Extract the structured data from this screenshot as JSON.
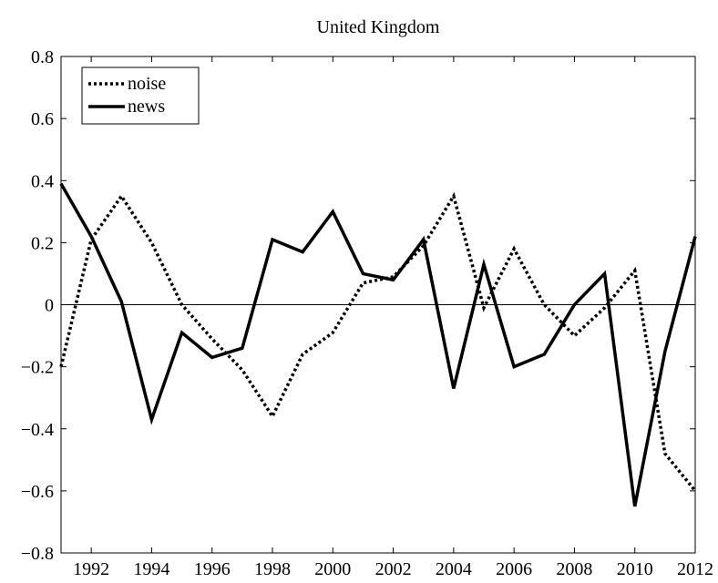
{
  "chart_data": {
    "type": "line",
    "title": "United Kingdom",
    "x": [
      1991,
      1992,
      1993,
      1994,
      1995,
      1996,
      1997,
      1998,
      1999,
      2000,
      2001,
      2002,
      2003,
      2004,
      2005,
      2006,
      2007,
      2008,
      2009,
      2010,
      2011,
      2012
    ],
    "series": [
      {
        "name": "noise",
        "color": "#000000",
        "dash": "dotted",
        "values": [
          -0.2,
          0.21,
          0.35,
          0.2,
          0.0,
          -0.11,
          -0.21,
          -0.36,
          -0.16,
          -0.09,
          0.07,
          0.09,
          0.19,
          0.35,
          -0.01,
          0.18,
          0.0,
          -0.1,
          -0.01,
          0.11,
          -0.48,
          -0.6
        ]
      },
      {
        "name": "news",
        "color": "#000000",
        "dash": "solid",
        "values": [
          0.39,
          0.22,
          0.01,
          -0.37,
          -0.09,
          -0.17,
          -0.14,
          0.21,
          0.17,
          0.3,
          0.1,
          0.08,
          0.21,
          -0.27,
          0.13,
          -0.2,
          -0.16,
          0.0,
          0.1,
          -0.65,
          -0.15,
          0.22
        ]
      }
    ],
    "xlim": [
      1991,
      2012
    ],
    "xticks": [
      1992,
      1994,
      1996,
      1998,
      2000,
      2002,
      2004,
      2006,
      2008,
      2010,
      2012
    ],
    "ylim": [
      -0.8,
      0.8
    ],
    "yticks": [
      {
        "value": -0.8,
        "label": "−0.8"
      },
      {
        "value": -0.6,
        "label": "−0.6"
      },
      {
        "value": -0.4,
        "label": "−0.4"
      },
      {
        "value": -0.2,
        "label": "−0.2"
      },
      0,
      0.2,
      0.4,
      0.6,
      0.8
    ],
    "legend": "upper left"
  }
}
